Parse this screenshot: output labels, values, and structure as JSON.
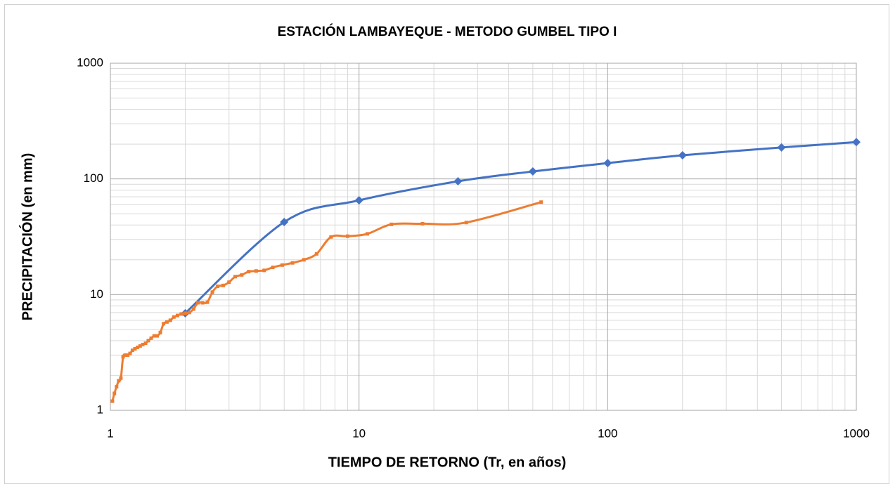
{
  "chart_data": {
    "type": "line",
    "title": "ESTACIÓN LAMBAYEQUE - METODO GUMBEL TIPO I",
    "x_label": "TIEMPO DE RETORNO (Tr, en años)",
    "y_label": "PRECIPITACIÓN (en mm)",
    "xscale": "log",
    "yscale": "log",
    "xlim": [
      1,
      1000
    ],
    "ylim": [
      1,
      1000
    ],
    "xticks": [
      1,
      10,
      100,
      1000
    ],
    "yticks": [
      1,
      10,
      100,
      1000
    ],
    "grid": true,
    "series": [
      {
        "color": "#4472c4",
        "marker": "diamond",
        "x": [
          2,
          5,
          10,
          25,
          50,
          100,
          200,
          500,
          1000
        ],
        "values": [
          6.9,
          42.4,
          65.3,
          95.4,
          116,
          137,
          160,
          187,
          208
        ]
      },
      {
        "color": "#ed7d31",
        "marker": "square",
        "x": [
          1.019,
          1.038,
          1.059,
          1.08,
          1.102,
          1.125,
          1.149,
          1.174,
          1.2,
          1.227,
          1.256,
          1.286,
          1.317,
          1.35,
          1.385,
          1.421,
          1.459,
          1.5,
          1.543,
          1.588,
          1.636,
          1.688,
          1.742,
          1.8,
          1.862,
          1.929,
          2,
          2.077,
          2.16,
          2.25,
          2.348,
          2.455,
          2.571,
          2.7,
          2.842,
          3,
          3.176,
          3.375,
          3.6,
          3.857,
          4.154,
          4.5,
          4.909,
          5.4,
          6,
          6.75,
          7.714,
          9,
          10.8,
          13.5,
          18,
          27,
          54
        ],
        "values": [
          1.2,
          1.4,
          1.6,
          1.8,
          1.9,
          2.9,
          3.0,
          3.0,
          3.1,
          3.3,
          3.4,
          3.5,
          3.6,
          3.7,
          3.8,
          4.0,
          4.2,
          4.4,
          4.4,
          4.7,
          5.6,
          5.8,
          6.0,
          6.4,
          6.6,
          6.8,
          6.9,
          7.0,
          7.5,
          8.5,
          8.5,
          8.6,
          10.5,
          11.8,
          12.0,
          12.8,
          14.3,
          14.8,
          15.8,
          16.0,
          16.2,
          17.2,
          18.0,
          18.8,
          20.0,
          22.5,
          31.5,
          32.0,
          33.5,
          40.5,
          41.0,
          42.0,
          63.0
        ]
      }
    ]
  }
}
